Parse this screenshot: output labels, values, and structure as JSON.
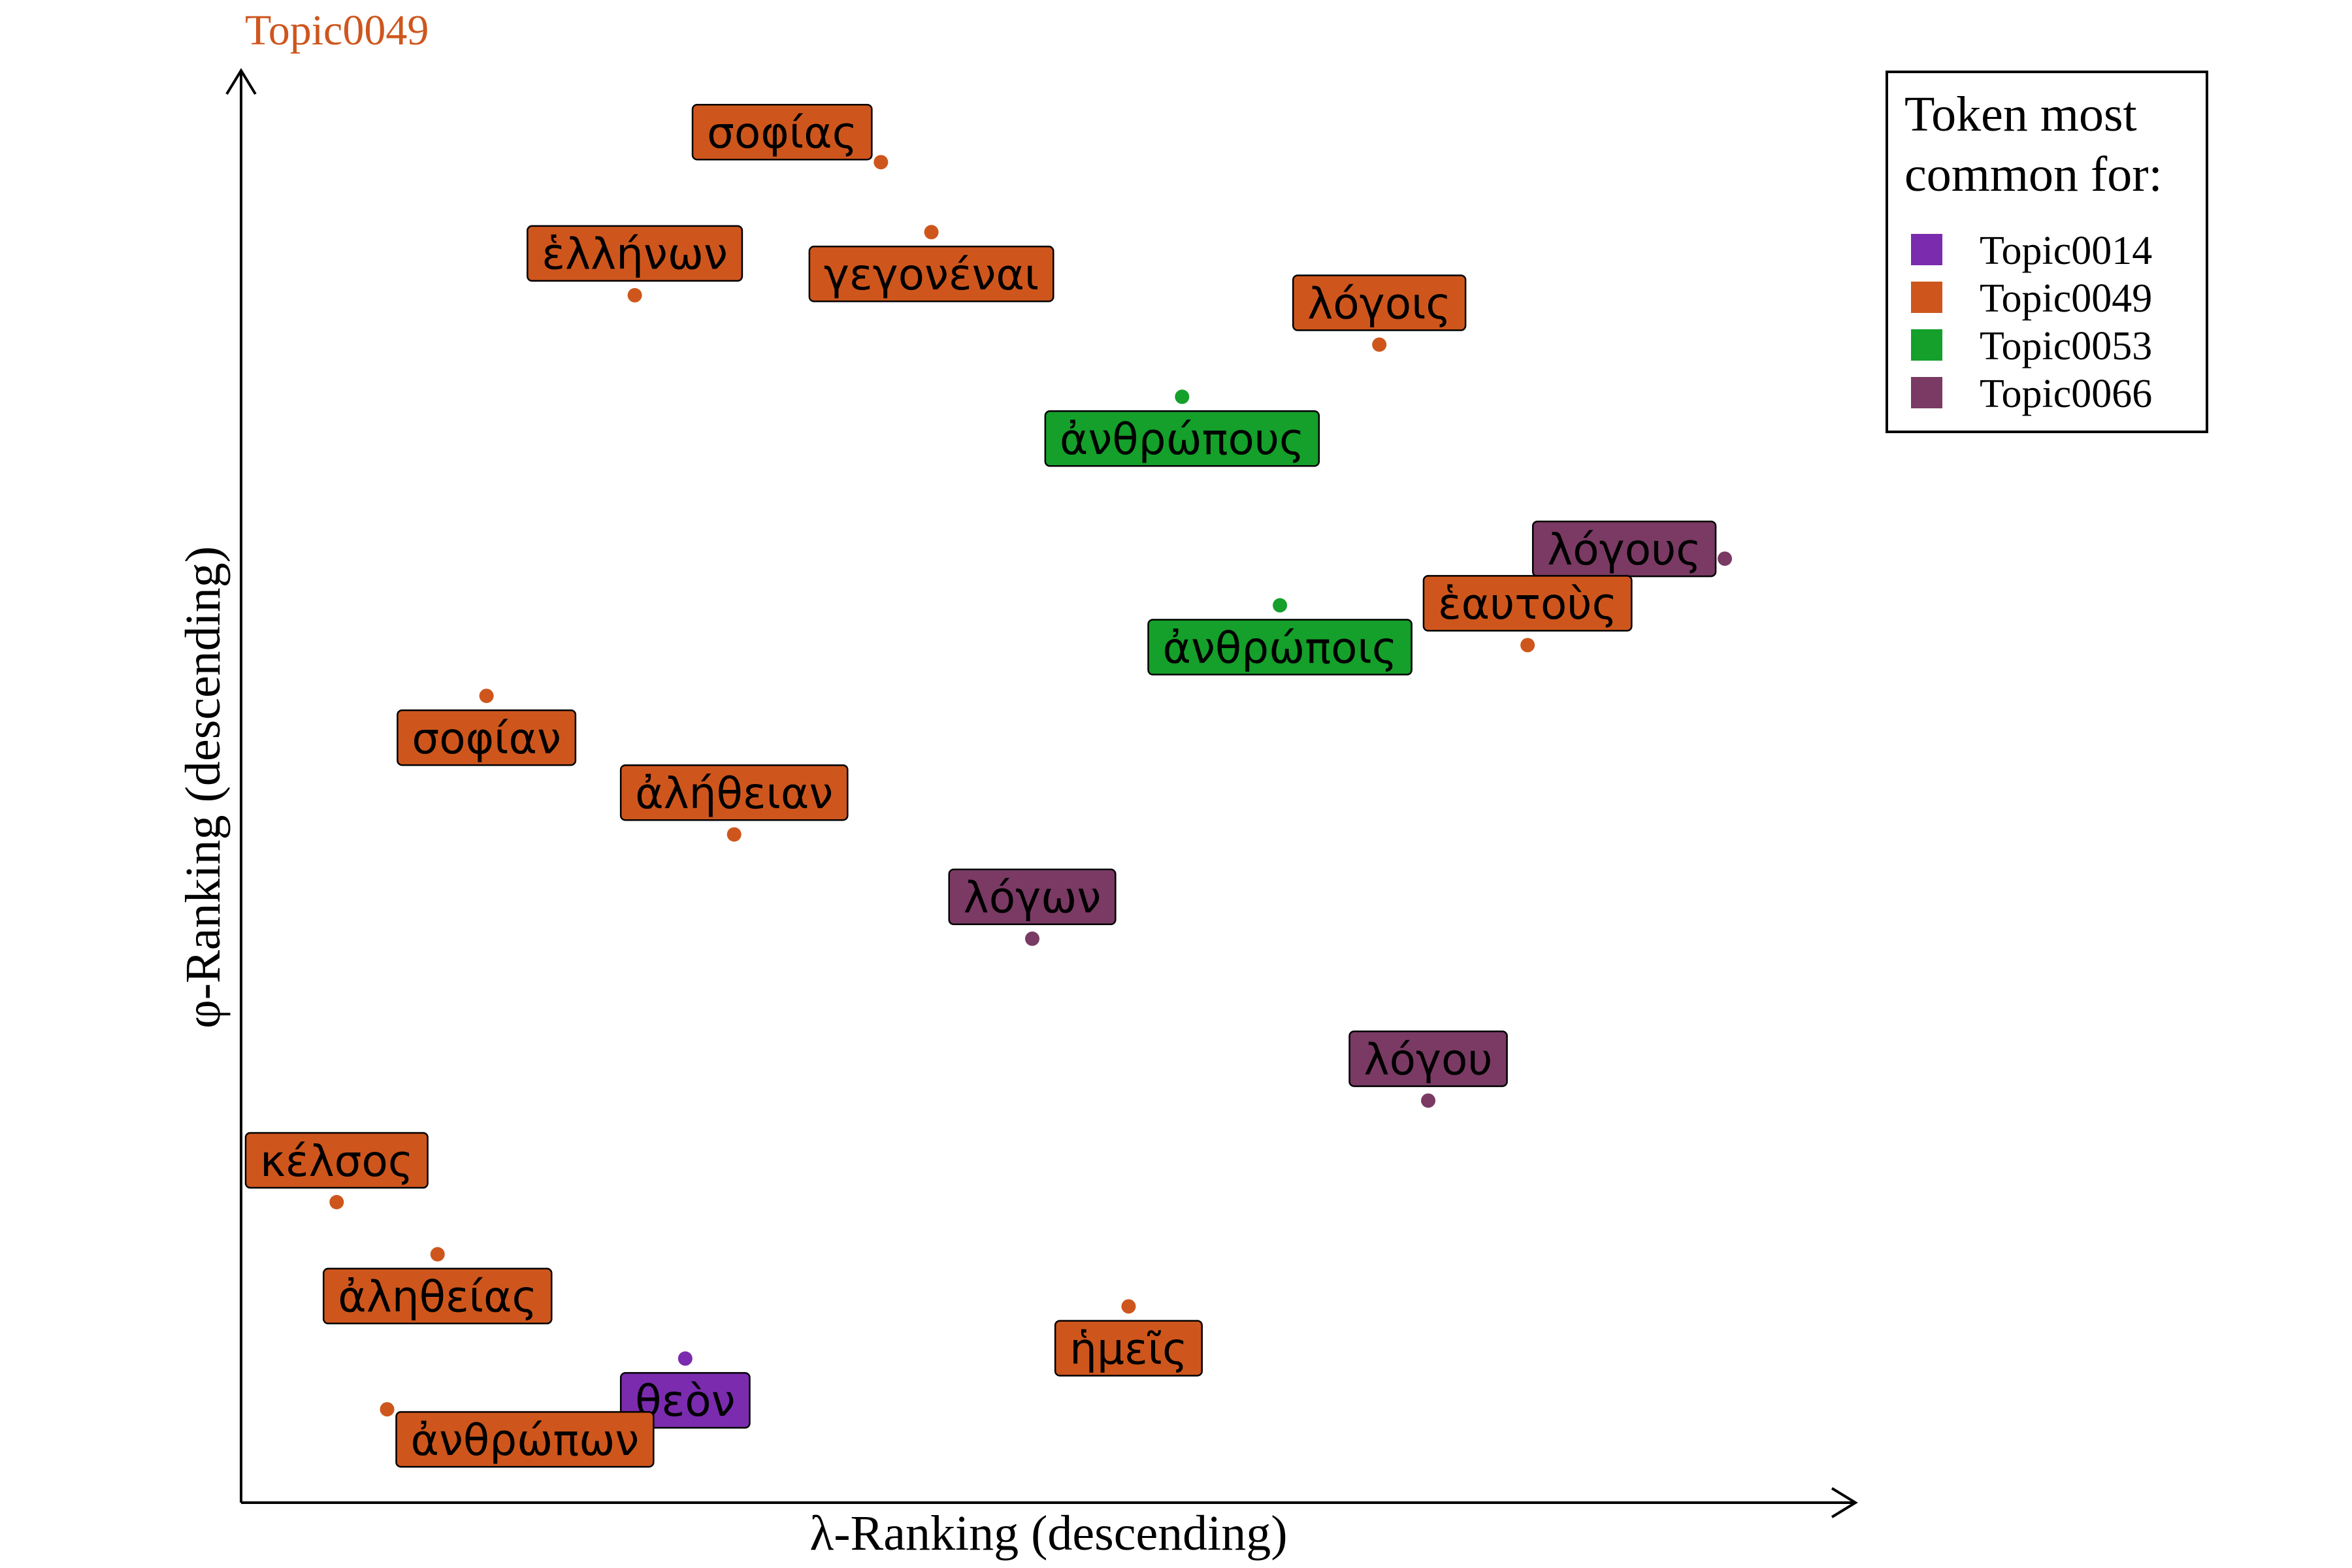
{
  "chart_data": {
    "type": "scatter",
    "title": "Topic0049",
    "xlabel": "λ-Ranking (descending)",
    "ylabel": "φ-Ranking (descending)",
    "xlim": [
      0,
      100
    ],
    "ylim": [
      0,
      100
    ],
    "grid": false,
    "legend": {
      "title_lines": [
        "Token most",
        "common for:"
      ],
      "placement": "top-right",
      "entries": [
        {
          "name": "Topic0014",
          "color": "#7B2BAE"
        },
        {
          "name": "Topic0049",
          "color": "#CE561D"
        },
        {
          "name": "Topic0053",
          "color": "#14A02A"
        },
        {
          "name": "Topic0066",
          "color": "#7A3A64"
        }
      ]
    },
    "points": [
      {
        "label": "σοφίας",
        "x": 40.1,
        "y": 95.8,
        "topic": "Topic0049",
        "label_pos": "above-left"
      },
      {
        "label": "γεγονέναι",
        "x": 43.4,
        "y": 90.7,
        "topic": "Topic0049",
        "label_pos": "below"
      },
      {
        "label": "ἑλλήνων",
        "x": 24.0,
        "y": 86.1,
        "topic": "Topic0049",
        "label_pos": "above"
      },
      {
        "label": "λόγοις",
        "x": 72.7,
        "y": 82.5,
        "topic": "Topic0049",
        "label_pos": "above"
      },
      {
        "label": "ἀνθρώπους",
        "x": 59.8,
        "y": 78.7,
        "topic": "Topic0053",
        "label_pos": "below"
      },
      {
        "label": "λόγους",
        "x": 95.3,
        "y": 66.9,
        "topic": "Topic0066",
        "label_pos": "left"
      },
      {
        "label": "ἀνθρώποις",
        "x": 66.2,
        "y": 63.5,
        "topic": "Topic0053",
        "label_pos": "below"
      },
      {
        "label": "ἑαυτοὺς",
        "x": 82.4,
        "y": 60.6,
        "topic": "Topic0049",
        "label_pos": "above"
      },
      {
        "label": "σοφίαν",
        "x": 14.3,
        "y": 56.9,
        "topic": "Topic0049",
        "label_pos": "below"
      },
      {
        "label": "ἀλήθειαν",
        "x": 30.5,
        "y": 46.8,
        "topic": "Topic0049",
        "label_pos": "above"
      },
      {
        "label": "λόγων",
        "x": 50.0,
        "y": 39.2,
        "topic": "Topic0066",
        "label_pos": "above"
      },
      {
        "label": "λόγου",
        "x": 75.9,
        "y": 27.4,
        "topic": "Topic0066",
        "label_pos": "above"
      },
      {
        "label": "κέλσος",
        "x": 4.5,
        "y": 20.0,
        "topic": "Topic0049",
        "label_pos": "above"
      },
      {
        "label": "ἀληθείας",
        "x": 11.1,
        "y": 16.2,
        "topic": "Topic0049",
        "label_pos": "below"
      },
      {
        "label": "ἡμεῖς",
        "x": 56.3,
        "y": 12.4,
        "topic": "Topic0049",
        "label_pos": "below"
      },
      {
        "label": "θεὸν",
        "x": 27.3,
        "y": 8.6,
        "topic": "Topic0014",
        "label_pos": "below"
      },
      {
        "label": "ἀνθρώπων",
        "x": 7.8,
        "y": 4.9,
        "topic": "Topic0049",
        "label_pos": "below-right"
      }
    ]
  }
}
